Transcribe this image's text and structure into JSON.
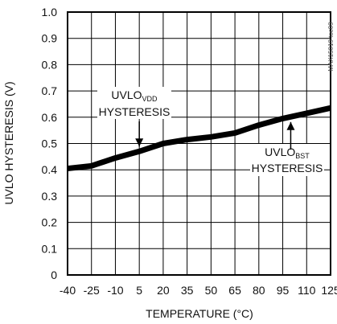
{
  "chart_data": {
    "type": "line",
    "xlabel": "TEMPERATURE (°C)",
    "ylabel": "UVLO HYSTERESIS (V)",
    "xlim": [
      -40,
      125
    ],
    "ylim": [
      0,
      1.0
    ],
    "x_ticks": [
      -40,
      -25,
      -10,
      5,
      20,
      35,
      50,
      65,
      80,
      95,
      110,
      125
    ],
    "x_tick_labels": [
      "-40",
      "-25",
      "-10",
      "5",
      "20",
      "35",
      "50",
      "65",
      "80",
      "95",
      "110",
      "125"
    ],
    "y_ticks": [
      0,
      0.1,
      0.2,
      0.3,
      0.4,
      0.5,
      0.6,
      0.7,
      0.8,
      0.9,
      1.0
    ],
    "y_tick_labels": [
      "0",
      "0.1",
      "0.2",
      "0.3",
      "0.4",
      "0.5",
      "0.6",
      "0.7",
      "0.8",
      "0.9",
      "1.0"
    ],
    "grid": true,
    "series": [
      {
        "x": [
          -40,
          -25,
          -10,
          5,
          20,
          35,
          50,
          65,
          80,
          95,
          110,
          125
        ],
        "values": [
          0.405,
          0.415,
          0.445,
          0.47,
          0.5,
          0.515,
          0.525,
          0.54,
          0.57,
          0.595,
          0.615,
          0.635
        ]
      }
    ],
    "annotations": [
      {
        "main": "UVLO",
        "sub": "VDD",
        "line2": "HYSTERESIS",
        "points_to_x": 5,
        "points_to_y": 0.47
      },
      {
        "main": "UVLO",
        "sub": "BST",
        "line2": "HYSTERESIS",
        "points_to_x": 100,
        "points_to_y": 0.6
      }
    ],
    "side_code": "MAX15019 toc09"
  }
}
